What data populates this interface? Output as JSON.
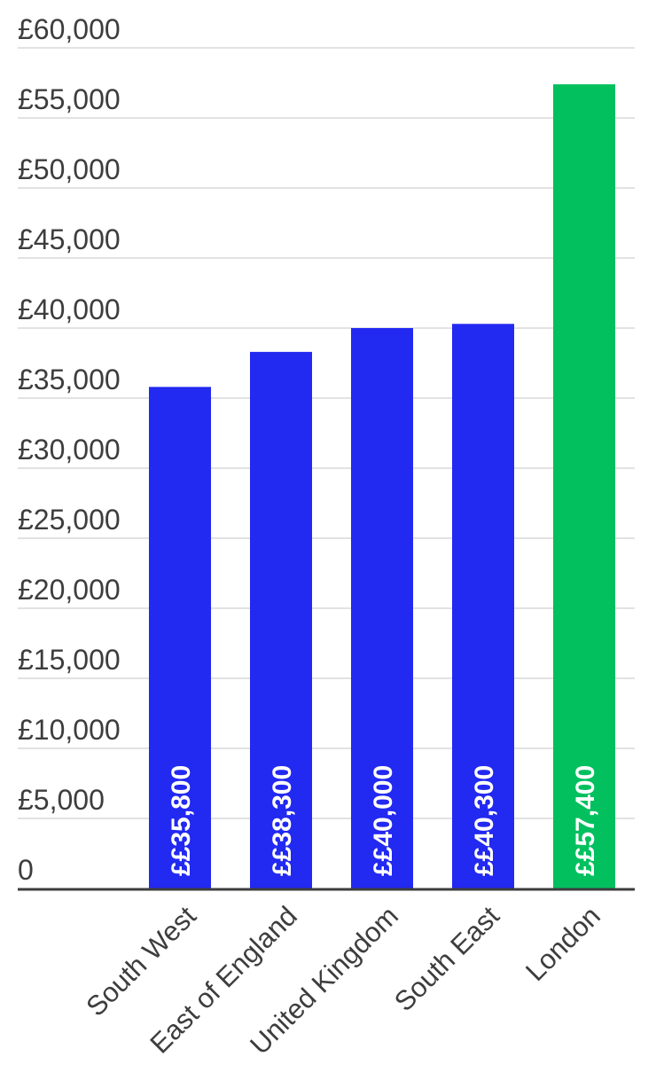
{
  "chart_data": {
    "type": "bar",
    "categories": [
      "South West",
      "East of England",
      "United Kingdom",
      "South East",
      "London"
    ],
    "values": [
      35800,
      38300,
      40000,
      40300,
      57400
    ],
    "data_labels": [
      "££35,800",
      "££38,300",
      "££40,000",
      "££40,300",
      "££57,400"
    ],
    "bar_colors": [
      "#2229f0",
      "#2229f0",
      "#2229f0",
      "#2229f0",
      "#03c05e"
    ],
    "ylim": [
      0,
      60000
    ],
    "y_ticks": [
      0,
      5000,
      10000,
      15000,
      20000,
      25000,
      30000,
      35000,
      40000,
      45000,
      50000,
      55000,
      60000
    ],
    "y_tick_labels": [
      "0",
      "£5,000",
      "£10,000",
      "£15,000",
      "£20,000",
      "£25,000",
      "£30,000",
      "£35,000",
      "£40,000",
      "£45,000",
      "£50,000",
      "£55,000",
      "£60,000"
    ],
    "title": "",
    "xlabel": "",
    "ylabel": "",
    "grid": true,
    "legend": "none"
  }
}
